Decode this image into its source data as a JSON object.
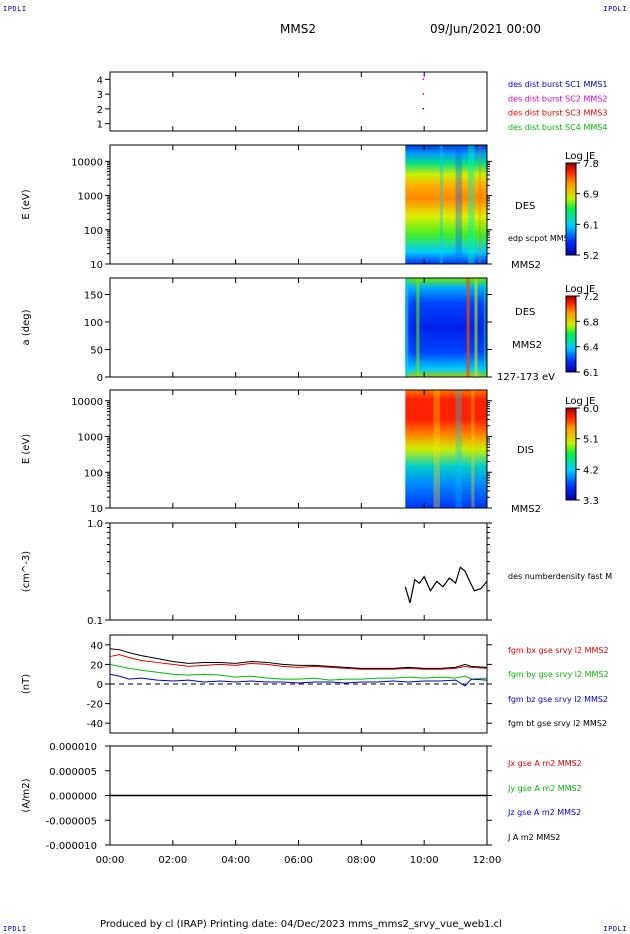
{
  "header": {
    "corner_tl": "IPDLI",
    "corner_tr": "IPDLI",
    "corner_bl": "IPDLI",
    "corner_br": "IPDLI",
    "title": "MMS2",
    "date": "09/Jun/2021 00:00"
  },
  "footer": {
    "text": "Produced by cl (IRAP)   Printing date: 04/Dec/2023   mms_mms2_srvy_vue_web1.cl"
  },
  "colors": {
    "sc1": "#0000cc",
    "sc2": "#cc00cc",
    "sc3": "#dd0000",
    "sc4": "#00bb00",
    "bx": "#dd0000",
    "by": "#00bb00",
    "bz": "#0000cc",
    "bt": "#000000"
  },
  "chart_data": [
    {
      "id": "burst",
      "type": "scatter",
      "ylim": [
        0.5,
        4.5
      ],
      "yticks": [
        "1",
        "2",
        "3",
        "4"
      ],
      "legend": [
        "des dist burst SC1 MMS1",
        "des dist burst SC2 MMS2",
        "des dist burst SC3 MMS3",
        "des dist burst SC4 MMS4"
      ],
      "points": [
        {
          "x": 9.95,
          "y": 2.0
        },
        {
          "x": 9.95,
          "y": 3.0
        },
        {
          "x": 9.95,
          "y": 4.0
        }
      ]
    },
    {
      "id": "des_energy",
      "type": "heatmap",
      "ylabel": "E (eV)",
      "yscale": "log",
      "ylim": [
        10,
        30000
      ],
      "yticks": [
        "10",
        "100",
        "1000",
        "10000"
      ],
      "label": "DES",
      "sublabel": "edp scpot MMS2",
      "spacecraft": "MMS2",
      "colorbar": {
        "title": "Log JE",
        "ticks": [
          "7.8",
          "6.9",
          "6.1",
          "5.2"
        ]
      },
      "data_start": 9.4
    },
    {
      "id": "des_pitch",
      "type": "heatmap",
      "ylabel": "a (deg)",
      "ylim": [
        0,
        180
      ],
      "yticks": [
        "0",
        "50",
        "100",
        "150"
      ],
      "label": "DES",
      "sublabel": "MMS2",
      "note": "127-173 eV",
      "colorbar": {
        "title": "Log JE",
        "ticks": [
          "7.2",
          "6.8",
          "6.4",
          "6.1"
        ]
      },
      "data_start": 9.4
    },
    {
      "id": "dis_energy",
      "type": "heatmap",
      "ylabel": "E (eV)",
      "yscale": "log",
      "ylim": [
        10,
        20000
      ],
      "yticks": [
        "10",
        "100",
        "1000",
        "10000"
      ],
      "label": "DIS",
      "spacecraft": "MMS2",
      "colorbar": {
        "title": "Log JE",
        "ticks": [
          "6.0",
          "5.1",
          "4.2",
          "3.3"
        ]
      },
      "data_start": 9.4
    },
    {
      "id": "density",
      "type": "line",
      "ylabel": "(cm^-3)",
      "yscale": "log",
      "ylim": [
        0.1,
        1.0
      ],
      "yticks": [
        "0.1",
        "1.0"
      ],
      "legend": [
        "des numberdensity fast M"
      ],
      "series": [
        {
          "x": [
            9.4,
            9.55,
            9.7,
            9.85,
            10.0,
            10.2,
            10.4,
            10.6,
            10.8,
            11.0,
            11.15,
            11.3,
            11.45,
            11.6,
            11.8,
            12.0
          ],
          "values": [
            0.22,
            0.15,
            0.26,
            0.24,
            0.28,
            0.2,
            0.25,
            0.22,
            0.27,
            0.24,
            0.35,
            0.32,
            0.25,
            0.2,
            0.21,
            0.25
          ]
        }
      ]
    },
    {
      "id": "bfield",
      "type": "line",
      "ylabel": "(nT)",
      "ylim": [
        -50,
        50
      ],
      "yticks": [
        "40",
        "20",
        "0",
        "-20",
        "-40"
      ],
      "legend": [
        "fgm bx gse srvy l2 MMS2",
        "fgm by gse srvy l2 MMS2",
        "fgm bz gse srvy l2 MMS2",
        "fgm bt gse srvy l2 MMS2"
      ],
      "series": [
        {
          "x": [
            0,
            0.3,
            0.6,
            1,
            1.5,
            2,
            2.5,
            3,
            3.5,
            4,
            4.5,
            5,
            5.5,
            6,
            6.5,
            7,
            7.5,
            8,
            8.5,
            9,
            9.5,
            10,
            10.5,
            11,
            11.3,
            11.5,
            12
          ],
          "values": [
            28,
            30,
            27,
            24,
            22,
            20,
            18,
            19,
            20,
            19,
            21,
            20,
            18,
            17,
            18,
            17,
            16,
            15,
            15,
            15,
            16,
            15,
            15,
            16,
            18,
            17,
            16
          ]
        },
        {
          "x": [
            0,
            0.3,
            0.6,
            1,
            1.5,
            2,
            2.5,
            3,
            3.5,
            4,
            4.5,
            5,
            5.5,
            6,
            6.5,
            7,
            7.5,
            8,
            8.5,
            9,
            9.5,
            10,
            10.5,
            11,
            11.3,
            11.5,
            12
          ],
          "values": [
            20,
            18,
            16,
            14,
            12,
            10,
            9,
            10,
            9,
            7,
            8,
            6,
            5,
            5,
            6,
            4,
            5,
            5,
            6,
            6,
            7,
            6,
            7,
            6,
            8,
            5,
            6
          ]
        },
        {
          "x": [
            0,
            0.3,
            0.6,
            1,
            1.5,
            2,
            2.5,
            3,
            3.5,
            4,
            4.5,
            5,
            5.5,
            6,
            6.5,
            7,
            7.5,
            8,
            8.5,
            9,
            9.5,
            10,
            10.5,
            11,
            11.3,
            11.5,
            12
          ],
          "values": [
            10,
            8,
            5,
            6,
            4,
            3,
            4,
            2,
            3,
            2,
            3,
            2,
            2,
            1,
            2,
            2,
            1,
            2,
            2,
            3,
            2,
            3,
            3,
            4,
            -2,
            5,
            4
          ]
        },
        {
          "x": [
            0,
            0.3,
            0.6,
            1,
            1.5,
            2,
            2.5,
            3,
            3.5,
            4,
            4.5,
            5,
            5.5,
            6,
            6.5,
            7,
            7.5,
            8,
            8.5,
            9,
            9.5,
            10,
            10.5,
            11,
            11.3,
            11.5,
            12
          ],
          "values": [
            36,
            35,
            32,
            29,
            26,
            23,
            21,
            22,
            22,
            21,
            23,
            22,
            20,
            19,
            19,
            18,
            17,
            16,
            16,
            16,
            17,
            16,
            16,
            17,
            20,
            18,
            17
          ]
        }
      ]
    },
    {
      "id": "current",
      "type": "line",
      "ylabel": "(A/m2)",
      "ylim": [
        -1e-05,
        1e-05
      ],
      "yticks": [
        "0.000010",
        "0.000005",
        "0.000000",
        "-0.000005",
        "-0.000010"
      ],
      "legend": [
        "Jx gse A m2 MMS2",
        "Jy gse A m2 MMS2",
        "Jz gse A m2 MMS2",
        "J A m2 MMS2"
      ],
      "series": [
        {
          "x": [
            0,
            12
          ],
          "values": [
            0.0,
            0.0
          ]
        }
      ]
    }
  ],
  "xaxis": {
    "ticks": [
      "00:00",
      "02:00",
      "04:00",
      "06:00",
      "08:00",
      "10:00",
      "12:00"
    ],
    "range": [
      0,
      12
    ]
  }
}
